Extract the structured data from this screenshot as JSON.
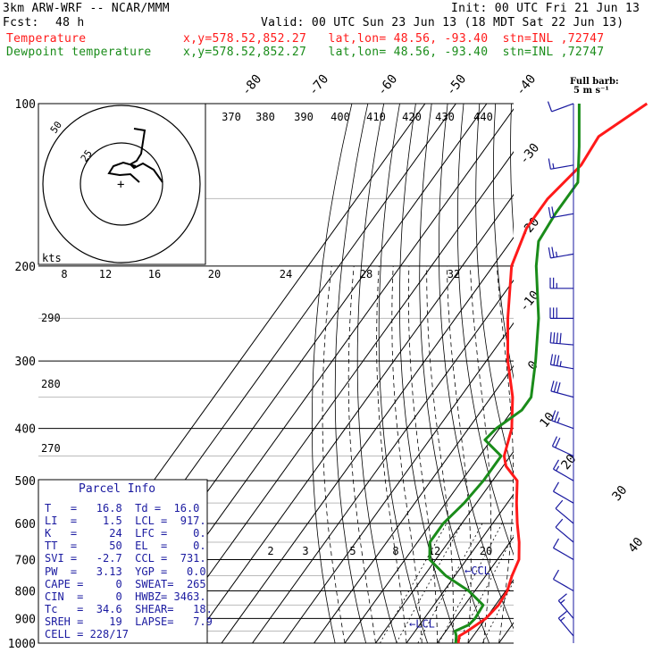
{
  "header": {
    "model": "3km ARW-WRF -- NCAR/MMM",
    "init": "Init: 00 UTC Fri 21 Jun 13",
    "fcst_label": "Fcst:",
    "fcst_value": "48 h",
    "valid": "Valid: 00 UTC Sun 23 Jun 13 (18 MDT Sat 22 Jun 13)",
    "temp_label": "Temperature",
    "temp_info": "x,y=578.52,852.27   lat,lon= 48.56, -93.40  stn=INL ,72747",
    "dew_label": "Dewpoint temperature",
    "dew_info": "x,y=578.52,852.27   lat,lon= 48.56, -93.40  stn=INL ,72747"
  },
  "chart_data": {
    "type": "line",
    "title": "",
    "xlabel": "",
    "ylabel": "",
    "y_scale": "log-pressure",
    "pressure_levels": [
      100,
      200,
      300,
      400,
      500,
      600,
      700,
      800,
      900,
      1000
    ],
    "isotherm_labels": [
      -80,
      -70,
      -60,
      -50,
      -40,
      -30,
      -20,
      -10,
      0,
      10,
      20,
      30,
      40
    ],
    "mixing_ratio_labels_upper": [
      8,
      12,
      16,
      20,
      24,
      28,
      32
    ],
    "mixing_ratio_labels_lower": [
      2,
      3,
      5,
      8,
      12,
      20
    ],
    "theta_labels_left": [
      290,
      280,
      270
    ],
    "hodo_speed_labels": [
      370,
      380,
      390,
      400,
      410,
      420,
      430,
      440
    ],
    "hodo_kts_label": "kts",
    "hodo_ring_labels": [
      50,
      25
    ],
    "wind_legend": "Full barb:\n5 m s⁻¹",
    "series": [
      {
        "name": "Temperature",
        "color": "#ff1a1a",
        "points": [
          [
            1000,
            16.8
          ],
          [
            970,
            15.5
          ],
          [
            950,
            17
          ],
          [
            925,
            18.5
          ],
          [
            900,
            20
          ],
          [
            850,
            21
          ],
          [
            800,
            20.5
          ],
          [
            750,
            18.5
          ],
          [
            700,
            17
          ],
          [
            650,
            13
          ],
          [
            600,
            8
          ],
          [
            550,
            3
          ],
          [
            500,
            -2
          ],
          [
            470,
            -9
          ],
          [
            450,
            -12
          ],
          [
            400,
            -16
          ],
          [
            350,
            -23
          ],
          [
            300,
            -33
          ],
          [
            250,
            -43
          ],
          [
            200,
            -54
          ],
          [
            170,
            -58
          ],
          [
            150,
            -58
          ],
          [
            130,
            -55
          ],
          [
            115,
            -56
          ],
          [
            100,
            -48
          ]
        ]
      },
      {
        "name": "Dewpoint temperature",
        "color": "#1a8c1a",
        "points": [
          [
            1000,
            16
          ],
          [
            970,
            14.5
          ],
          [
            950,
            13
          ],
          [
            925,
            16
          ],
          [
            900,
            16.5
          ],
          [
            850,
            16
          ],
          [
            800,
            8
          ],
          [
            750,
            -3
          ],
          [
            700,
            -12
          ],
          [
            650,
            -16
          ],
          [
            600,
            -16
          ],
          [
            550,
            -14
          ],
          [
            500,
            -13
          ],
          [
            450,
            -13
          ],
          [
            420,
            -22
          ],
          [
            400,
            -21
          ],
          [
            370,
            -17
          ],
          [
            350,
            -17
          ],
          [
            300,
            -24
          ],
          [
            250,
            -33
          ],
          [
            200,
            -46
          ],
          [
            180,
            -51
          ],
          [
            160,
            -52
          ],
          [
            140,
            -52
          ],
          [
            120,
            -60
          ],
          [
            100,
            -70
          ]
        ]
      }
    ],
    "cl_markers": [
      {
        "label": "←CCL",
        "pressure": 731
      },
      {
        "label": "←LCL",
        "pressure": 917
      }
    ],
    "winds_kt": [
      {
        "p": 100,
        "dir": 250,
        "spd": 10
      },
      {
        "p": 130,
        "dir": 260,
        "spd": 15
      },
      {
        "p": 160,
        "dir": 260,
        "spd": 20
      },
      {
        "p": 190,
        "dir": 260,
        "spd": 25
      },
      {
        "p": 220,
        "dir": 270,
        "spd": 25
      },
      {
        "p": 250,
        "dir": 270,
        "spd": 30
      },
      {
        "p": 280,
        "dir": 275,
        "spd": 40
      },
      {
        "p": 310,
        "dir": 280,
        "spd": 35
      },
      {
        "p": 350,
        "dir": 285,
        "spd": 30
      },
      {
        "p": 400,
        "dir": 290,
        "spd": 25
      },
      {
        "p": 450,
        "dir": 295,
        "spd": 20
      },
      {
        "p": 500,
        "dir": 300,
        "spd": 15
      },
      {
        "p": 550,
        "dir": 300,
        "spd": 10
      },
      {
        "p": 600,
        "dir": 310,
        "spd": 10
      },
      {
        "p": 650,
        "dir": 310,
        "spd": 10
      },
      {
        "p": 700,
        "dir": 300,
        "spd": 10
      },
      {
        "p": 800,
        "dir": 300,
        "spd": 10
      },
      {
        "p": 900,
        "dir": 320,
        "spd": 15
      },
      {
        "p": 970,
        "dir": 320,
        "spd": 15
      }
    ]
  },
  "parcel": {
    "title": "Parcel Info",
    "rows": [
      "T   =   16.8  Td =  16.0",
      "LI  =    1.5  LCL =  917.",
      "K   =     24  LFC =    0.",
      "TT  =     50  EL  =    0.",
      "SVI =   -2.7  CCL =  731.",
      "PW  =   3.13  YGP =   0.0",
      "CAPE =     0  SWEAT=  265",
      "CIN  =     0  HWBZ= 3463.",
      "Tc   =  34.6  SHEAR=   18.",
      "SREH =    19  LAPSE=   7.9",
      "CELL = 228/17"
    ]
  }
}
